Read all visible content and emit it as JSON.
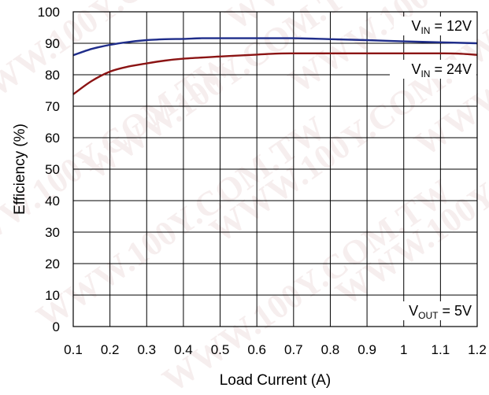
{
  "chart_data": {
    "type": "line",
    "xlabel": "Load Current (A)",
    "ylabel": "Efficiency (%)",
    "xlim": [
      0.1,
      1.2
    ],
    "ylim": [
      0,
      100
    ],
    "x_ticks": [
      "0.1",
      "0.2",
      "0.3",
      "0.4",
      "0.5",
      "0.6",
      "0.7",
      "0.8",
      "0.9",
      "1",
      "1.1",
      "1.2"
    ],
    "y_ticks": [
      "0",
      "10",
      "20",
      "30",
      "40",
      "50",
      "60",
      "70",
      "80",
      "90",
      "100"
    ],
    "grid": true,
    "series": [
      {
        "name_main": "V",
        "name_sub": "IN",
        "name_rest": " = 12V",
        "color": "#1f2d8a",
        "x": [
          0.1,
          0.15,
          0.2,
          0.25,
          0.3,
          0.35,
          0.4,
          0.45,
          0.5,
          0.6,
          0.7,
          0.8,
          0.9,
          1.0,
          1.1,
          1.2
        ],
        "y": [
          86.2,
          88.2,
          89.5,
          90.4,
          91.0,
          91.3,
          91.4,
          91.6,
          91.6,
          91.6,
          91.6,
          91.3,
          91.0,
          90.6,
          90.3,
          90.0
        ]
      },
      {
        "name_main": "V",
        "name_sub": "IN",
        "name_rest": " = 24V",
        "color": "#8b1414",
        "x": [
          0.1,
          0.15,
          0.2,
          0.25,
          0.3,
          0.35,
          0.4,
          0.5,
          0.6,
          0.65,
          0.7,
          0.8,
          0.9,
          1.0,
          1.1,
          1.15,
          1.2
        ],
        "y": [
          73.8,
          78.0,
          81.0,
          82.6,
          83.6,
          84.5,
          85.1,
          85.8,
          86.4,
          86.7,
          86.8,
          86.8,
          86.8,
          86.8,
          86.8,
          86.7,
          86.3
        ]
      }
    ],
    "annotation": {
      "main": "V",
      "sub": "OUT",
      "rest": " = 5V"
    }
  },
  "watermark_text": "WWW.100Y.COM.TW"
}
